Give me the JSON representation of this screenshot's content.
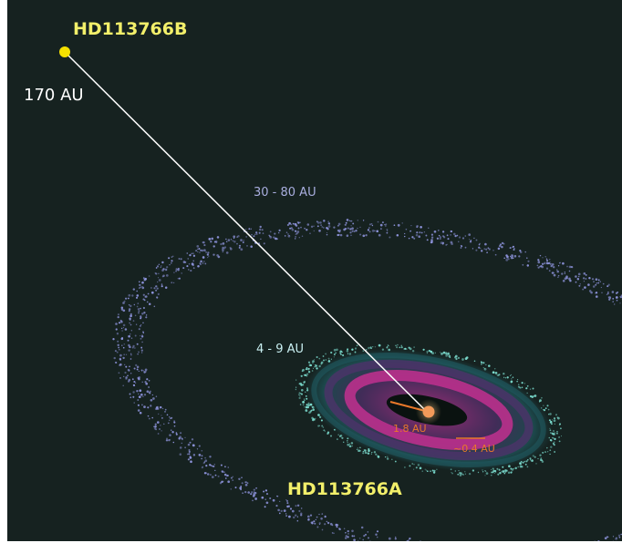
{
  "colors": {
    "background": "#162220",
    "frame": "#ffffff",
    "star_label": "#f2ef6a",
    "companion_star": "#f5e000",
    "primary_star": "#f29a5a",
    "connector_line": "#ffffff",
    "distance_label": "#ffffff",
    "outer_belt_dots": "#8e94dc",
    "outer_belt_label": "#a9aedf",
    "inner_belt_dots": "#7de0d2",
    "inner_belt_label": "#c9f0f2",
    "inner_disk_magenta": "#c2308f",
    "inner_disk_purple": "#52306e",
    "inner_disk_teal": "#1f5a60",
    "inner_gap": "#0a1210",
    "inner_marker_orange": "#e8782a"
  },
  "labels": {
    "companion_name": "HD113766B",
    "primary_name": "HD113766A",
    "separation": "170 AU",
    "outer_belt": "30 - 80 AU",
    "inner_belt": "4 - 9 AU",
    "inner_radius_a": "1.8 AU",
    "inner_radius_b": "~0.4 AU"
  },
  "icons": {
    "companion": "star-icon",
    "primary": "star-icon"
  }
}
